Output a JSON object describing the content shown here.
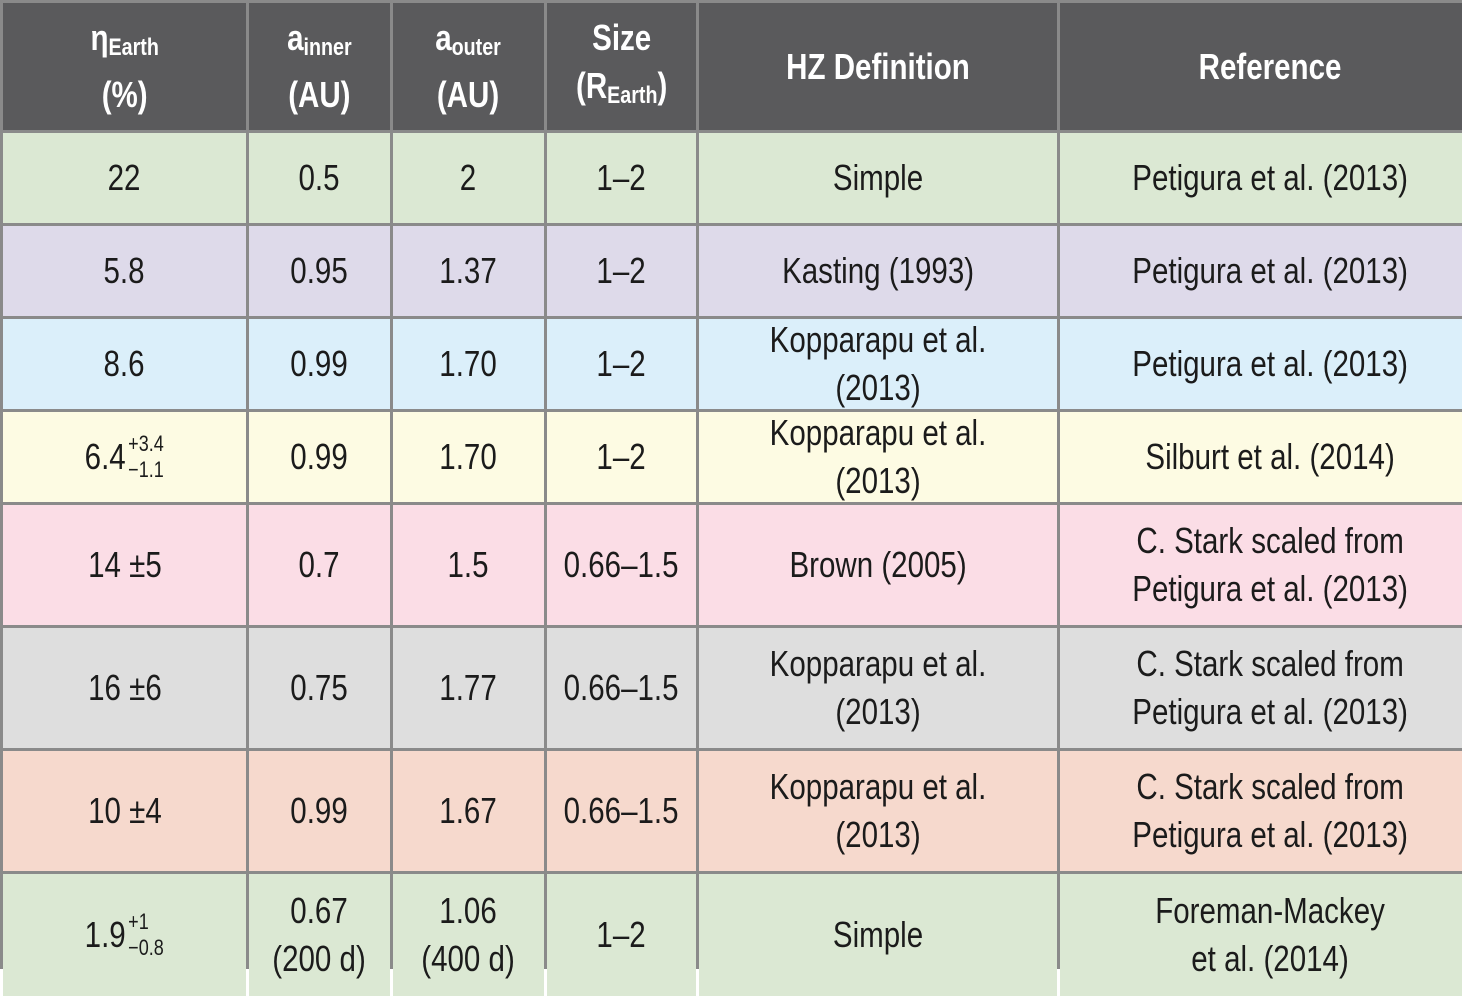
{
  "header": {
    "eta_symbol": "η",
    "eta_sub": "Earth",
    "eta_unit": "(%)",
    "a_inner_symbol": "a",
    "a_inner_sub": "inner",
    "a_inner_unit": "(AU)",
    "a_outer_symbol": "a",
    "a_outer_sub": "outer",
    "a_outer_unit": "(AU)",
    "size_label": "Size",
    "size_unit_open": "(R",
    "size_unit_sub": "Earth",
    "size_unit_close": ")",
    "hz_definition": "HZ Definition",
    "reference": "Reference"
  },
  "rows": [
    {
      "color": "#dbe8d3",
      "eta": "22",
      "eta_up": "",
      "eta_down": "",
      "a_inner": "0.5",
      "a_inner_note": "",
      "a_outer": "2",
      "a_outer_note": "",
      "size": "1–2",
      "hz": "Simple",
      "ref1": "Petigura et al. (2013)",
      "ref2": ""
    },
    {
      "color": "#dedaea",
      "eta": "5.8",
      "eta_up": "",
      "eta_down": "",
      "a_inner": "0.95",
      "a_inner_note": "",
      "a_outer": "1.37",
      "a_outer_note": "",
      "size": "1–2",
      "hz": "Kasting (1993)",
      "ref1": "Petigura et al. (2013)",
      "ref2": ""
    },
    {
      "color": "#dbeffa",
      "eta": "8.6",
      "eta_up": "",
      "eta_down": "",
      "a_inner": "0.99",
      "a_inner_note": "",
      "a_outer": "1.70",
      "a_outer_note": "",
      "size": "1–2",
      "hz": "Kopparapu et al. (2013)",
      "ref1": "Petigura et al. (2013)",
      "ref2": ""
    },
    {
      "color": "#fdfbe3",
      "eta": "6.4",
      "eta_up": "+3.4",
      "eta_down": "−1.1",
      "a_inner": "0.99",
      "a_inner_note": "",
      "a_outer": "1.70",
      "a_outer_note": "",
      "size": "1–2",
      "hz": "Kopparapu et al. (2013)",
      "ref1": "Silburt et al. (2014)",
      "ref2": ""
    },
    {
      "color": "#fbdde6",
      "eta": "14 ±5",
      "eta_up": "",
      "eta_down": "",
      "a_inner": "0.7",
      "a_inner_note": "",
      "a_outer": "1.5",
      "a_outer_note": "",
      "size": "0.66–1.5",
      "hz": "Brown (2005)",
      "ref1": "C. Stark scaled from",
      "ref2": "Petigura et al. (2013)"
    },
    {
      "color": "#dedede",
      "eta": "16 ±6",
      "eta_up": "",
      "eta_down": "",
      "a_inner": "0.75",
      "a_inner_note": "",
      "a_outer": "1.77",
      "a_outer_note": "",
      "size": "0.66–1.5",
      "hz": "Kopparapu et al. (2013)",
      "ref1": "C. Stark scaled from",
      "ref2": "Petigura et al. (2013)"
    },
    {
      "color": "#f6d9cd",
      "eta": "10 ±4",
      "eta_up": "",
      "eta_down": "",
      "a_inner": "0.99",
      "a_inner_note": "",
      "a_outer": "1.67",
      "a_outer_note": "",
      "size": "0.66–1.5",
      "hz": "Kopparapu et al. (2013)",
      "ref1": "C. Stark scaled from",
      "ref2": "Petigura et al. (2013)"
    },
    {
      "color": "#dbe8d3",
      "eta": "1.9",
      "eta_up": "+1",
      "eta_down": "−0.8",
      "a_inner": "0.67",
      "a_inner_note": "(200 d)",
      "a_outer": "1.06",
      "a_outer_note": "(400 d)",
      "size": "1–2",
      "hz": "Simple",
      "ref1": "Foreman-Mackey",
      "ref2": "et al. (2014)"
    }
  ]
}
